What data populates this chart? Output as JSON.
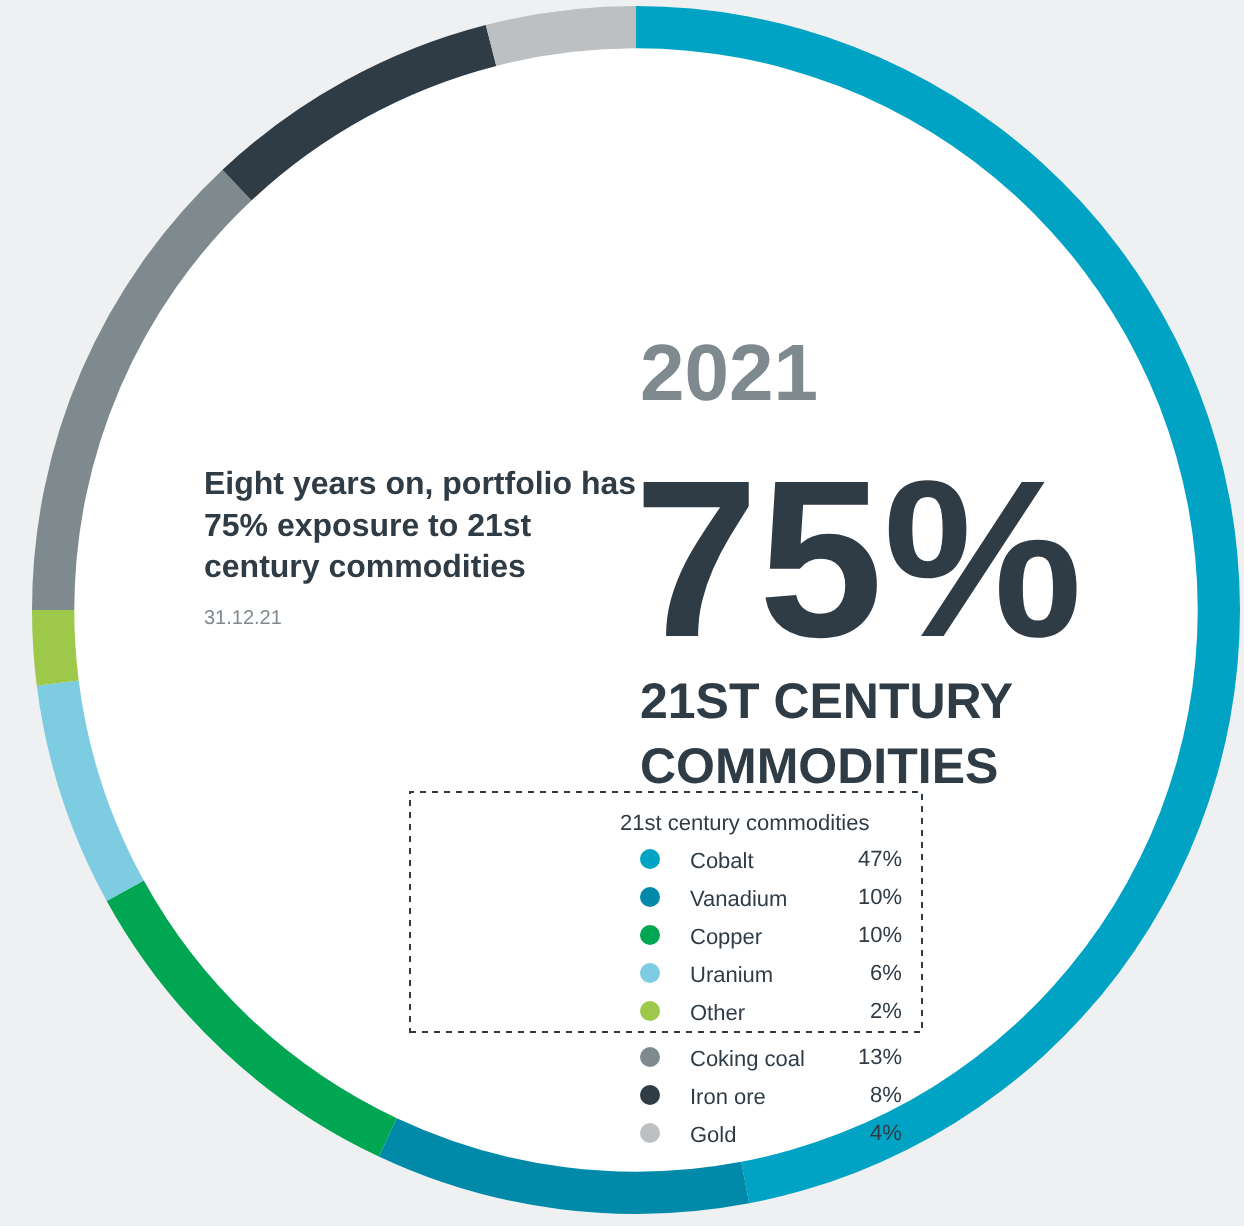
{
  "chart_data": {
    "type": "donut",
    "title": "2021",
    "categories": [
      "Cobalt",
      "Vanadium",
      "Copper",
      "Uranium",
      "Other",
      "Coking coal",
      "Iron ore",
      "Gold"
    ],
    "values": [
      47,
      10,
      10,
      6,
      2,
      13,
      8,
      4
    ],
    "value_labels": [
      "47%",
      "10%",
      "10%",
      "6%",
      "2%",
      "13%",
      "8%",
      "4%"
    ],
    "colors": [
      "#00a3c4",
      "#0089a8",
      "#00a651",
      "#7ecce2",
      "#9dc84a",
      "#7f8a8f",
      "#2f3b45",
      "#bdc0c2"
    ],
    "legend_title": "21st century commodities",
    "legend": "bottom right",
    "annotations": [
      "75%",
      "21ST CENTURY\nCOMMODITIES",
      "Eight years on, portfolio has\n75% exposure to 21st\ncentury commodities",
      "31.12.21"
    ]
  }
}
